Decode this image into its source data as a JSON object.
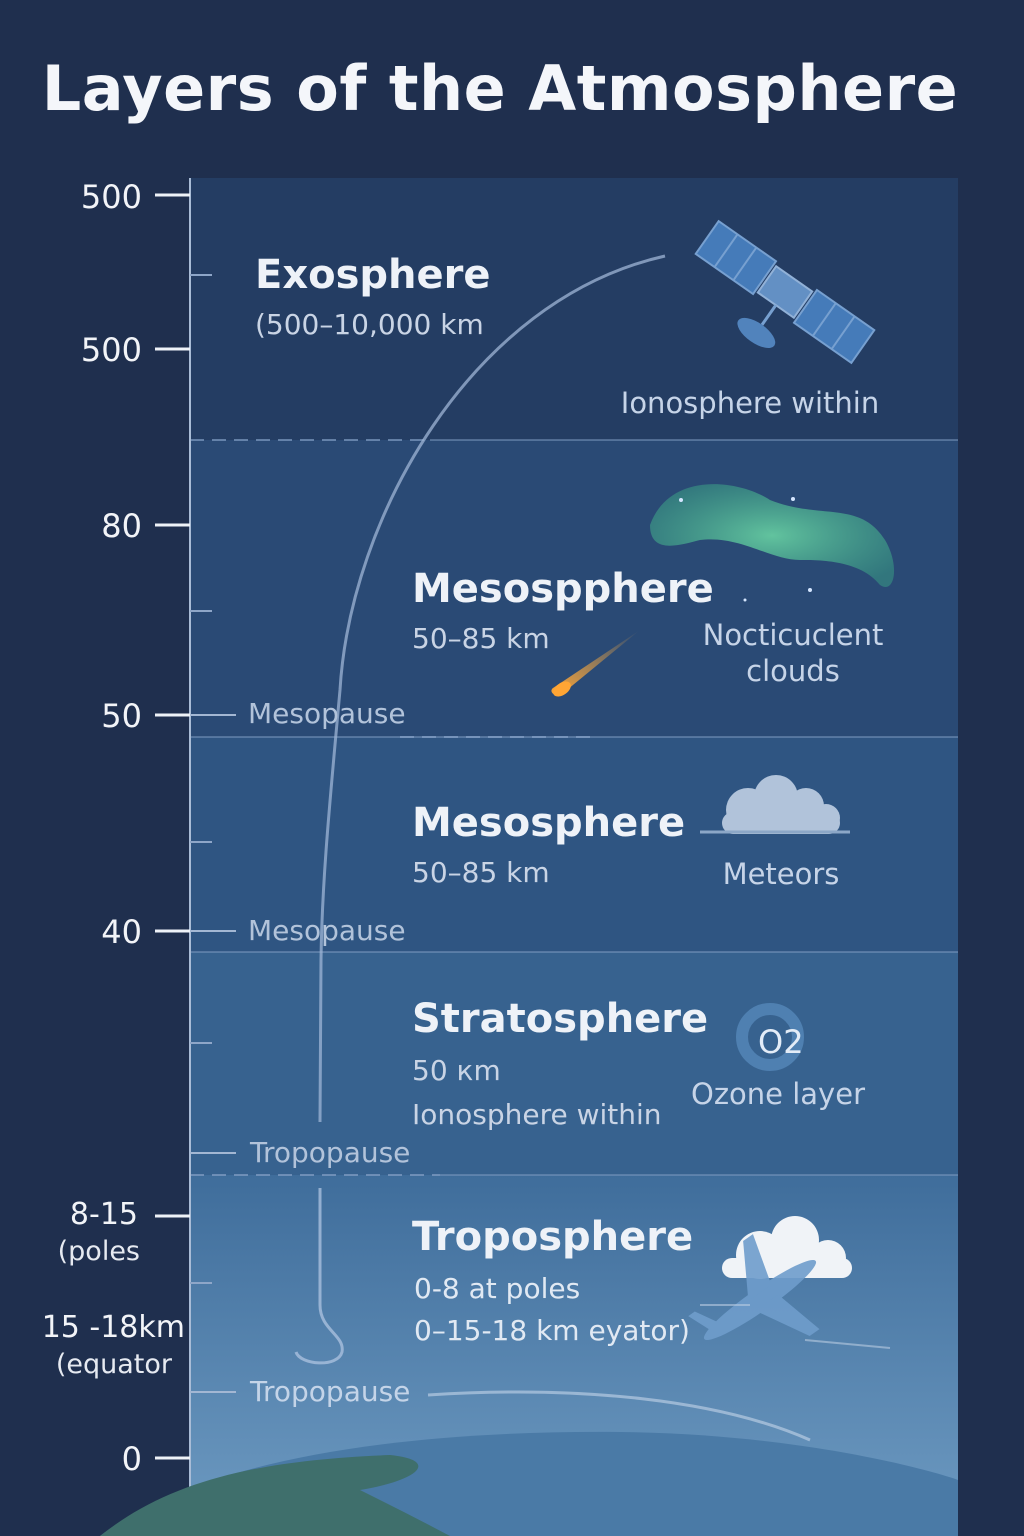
{
  "title": "Layers of the Atmosphere",
  "axis": {
    "ticks": [
      "500",
      "500",
      "80",
      "50",
      "40",
      "8-15",
      "15 -18km",
      "0"
    ],
    "tick_notes": [
      "(poles",
      "(equator"
    ]
  },
  "layers": {
    "exosphere": {
      "name": "Exosphere",
      "detail": "(500–10,000 km",
      "feature": "Ionosphere within",
      "feature_icon": "satellite-icon"
    },
    "upper_mesosphere": {
      "name": "Mesospphere",
      "detail": "50–85 km",
      "feature_lines": [
        "Nocticuclent",
        "clouds"
      ],
      "feature_icon": "aurora-icon",
      "boundary": "Mesopause"
    },
    "mesosphere": {
      "name": "Mesosphere",
      "detail": "50–85 km",
      "feature": "Meteors",
      "feature_icon": "cloud-icon",
      "boundary": "Mesopause"
    },
    "stratosphere": {
      "name": "Stratosphere",
      "detail": "50 кm",
      "detail2": "Ionosphere within",
      "feature": "Ozone layer",
      "feature_symbol": "O2",
      "boundary": "Tropopause"
    },
    "troposphere": {
      "name": "Troposphere",
      "detail": "0-8 at poles",
      "detail2": "0–15-18 km eyator)",
      "feature_icon": "airplane-icon",
      "boundary": "Tropopause"
    }
  },
  "colors": {
    "background": "#1f2f4e",
    "exosphere": "#243d63",
    "mesosphere_upper": "#2a4a75",
    "mesosphere": "#2f5582",
    "stratosphere": "#37628f",
    "troposphere_top": "#3f6d9b",
    "troposphere_bottom": "#6e9bc2",
    "earth": "#3f6f6c",
    "aurora": "#5fcf9c",
    "meteor": "#ffb347"
  }
}
